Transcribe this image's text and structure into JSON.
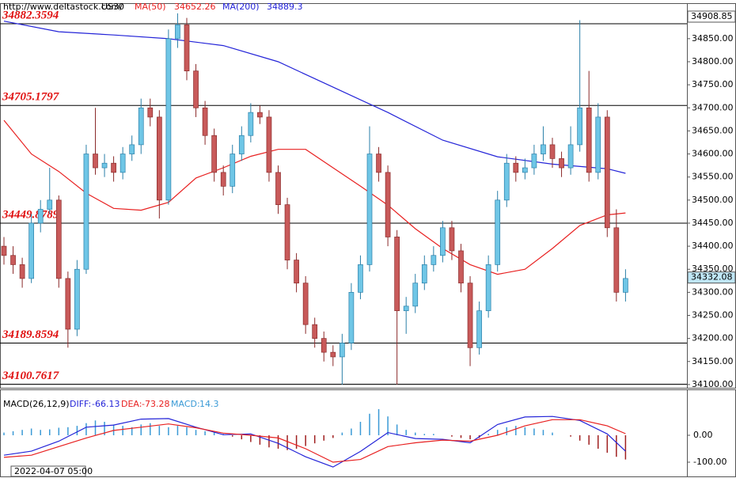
{
  "chart_data": {
    "type": "candlestick",
    "source": "http://www.deltastock.com/",
    "symbol": "US30",
    "date": "2022-04-07 05:00",
    "ylim": [
      34093,
      34927
    ],
    "yticks": [
      {
        "value": 34850,
        "label": "34850.00"
      },
      {
        "value": 34800,
        "label": "34800.00"
      },
      {
        "value": 34750,
        "label": "34750.00"
      },
      {
        "value": 34700,
        "label": "34700.00"
      },
      {
        "value": 34650,
        "label": "34650.00"
      },
      {
        "value": 34600,
        "label": "34600.00"
      },
      {
        "value": 34550,
        "label": "34550.00"
      },
      {
        "value": 34500,
        "label": "34500.00"
      },
      {
        "value": 34450,
        "label": "34450.00"
      },
      {
        "value": 34400,
        "label": "34400.00"
      },
      {
        "value": 34350,
        "label": "34350.00"
      },
      {
        "value": 34300,
        "label": "34300.00"
      },
      {
        "value": 34250,
        "label": "34250.00"
      },
      {
        "value": 34200,
        "label": "34200.00"
      },
      {
        "value": 34150,
        "label": "34150.00"
      },
      {
        "value": 34100,
        "label": "34100.00"
      }
    ],
    "top_price": 34908.85,
    "last_price": 34332.08,
    "levels": [
      34882.3594,
      34705.1797,
      34449.8789,
      34189.8594,
      34100.7617
    ],
    "up_color": "#6fc6e6",
    "down_color": "#c85a5a",
    "candles": {
      "open": [
        34400,
        34380,
        34360,
        34330,
        34450,
        34480,
        34500,
        34330,
        34220,
        34350,
        34600,
        34570,
        34580,
        34560,
        34600,
        34620,
        34700,
        34680,
        34500,
        34850,
        34880,
        34780,
        34700,
        34640,
        34560,
        34530,
        34600,
        34640,
        34690,
        34680,
        34560,
        34490,
        34370,
        34320,
        34230,
        34200,
        34170,
        34160,
        34190,
        34300,
        34360,
        34600,
        34560,
        34420,
        34260,
        34270,
        34320,
        34360,
        34380,
        34440,
        34390,
        34320,
        34180,
        34260,
        34360,
        34500,
        34580,
        34560,
        34570,
        34600,
        34620,
        34590,
        34570,
        34620,
        34700,
        34560,
        34680,
        34440,
        34300
      ],
      "high": [
        34420,
        34400,
        34375,
        34470,
        34500,
        34570,
        34510,
        34345,
        34370,
        34620,
        34700,
        34600,
        34595,
        34615,
        34640,
        34720,
        34720,
        34695,
        34870,
        34905,
        34895,
        34795,
        34715,
        34655,
        34575,
        34620,
        34660,
        34710,
        34705,
        34695,
        34575,
        34505,
        34385,
        34335,
        34245,
        34215,
        34185,
        34210,
        34320,
        34380,
        34660,
        34615,
        34575,
        34435,
        34290,
        34340,
        34380,
        34400,
        34455,
        34455,
        34405,
        34335,
        34280,
        34380,
        34520,
        34600,
        34595,
        34590,
        34620,
        34660,
        34635,
        34605,
        34660,
        34890,
        34780,
        34710,
        34695,
        34480,
        34350
      ],
      "low": [
        34360,
        34340,
        34310,
        34320,
        34430,
        34470,
        34310,
        34180,
        34205,
        34340,
        34555,
        34550,
        34540,
        34545,
        34585,
        34600,
        34660,
        34460,
        34490,
        34830,
        34760,
        34680,
        34620,
        34540,
        34510,
        34515,
        34585,
        34625,
        34665,
        34540,
        34470,
        34350,
        34300,
        34210,
        34180,
        34150,
        34140,
        34100,
        34175,
        34285,
        34345,
        34540,
        34400,
        34100,
        34210,
        34255,
        34305,
        34345,
        34365,
        34370,
        34300,
        34140,
        34165,
        34245,
        34345,
        34485,
        34540,
        34545,
        34555,
        34585,
        34570,
        34550,
        34555,
        34605,
        34540,
        34545,
        34420,
        34280,
        34280
      ],
      "close": [
        34380,
        34360,
        34330,
        34450,
        34480,
        34500,
        34330,
        34220,
        34350,
        34600,
        34570,
        34580,
        34560,
        34600,
        34620,
        34700,
        34680,
        34500,
        34850,
        34880,
        34780,
        34700,
        34640,
        34560,
        34530,
        34600,
        34640,
        34690,
        34680,
        34560,
        34490,
        34370,
        34320,
        34230,
        34200,
        34170,
        34160,
        34190,
        34300,
        34360,
        34600,
        34560,
        34420,
        34260,
        34270,
        34320,
        34360,
        34380,
        34440,
        34390,
        34320,
        34180,
        34260,
        34360,
        34500,
        34580,
        34560,
        34570,
        34600,
        34620,
        34590,
        34570,
        34620,
        34700,
        34560,
        34680,
        34440,
        34300,
        34330
      ]
    },
    "series": [
      {
        "name": "MA(50)",
        "value": 34652.26,
        "color": "#e82020",
        "x": [
          0,
          3,
          6,
          9,
          12,
          15,
          18,
          21,
          24,
          27,
          30,
          33,
          36,
          39,
          42,
          45,
          48,
          51,
          54,
          57,
          60,
          63,
          66,
          68
        ],
        "values": [
          34673,
          34600,
          34562,
          34515,
          34482,
          34478,
          34495,
          34548,
          34570,
          34595,
          34610,
          34610,
          34570,
          34530,
          34489,
          34438,
          34395,
          34360,
          34339,
          34350,
          34395,
          34445,
          34468,
          34472
        ]
      },
      {
        "name": "MA(200)",
        "value": 34889.3,
        "color": "#2424d8",
        "x": [
          0,
          6,
          12,
          18,
          24,
          30,
          36,
          42,
          48,
          54,
          60,
          66,
          68
        ],
        "values": [
          34888,
          34865,
          34858,
          34850,
          34835,
          34800,
          34745,
          34690,
          34630,
          34594,
          34578,
          34568,
          34558
        ]
      }
    ],
    "macd": {
      "title": "MACD(26,12,9)",
      "ylim": [
        -147,
        147
      ],
      "yticks": [
        {
          "value": 0,
          "label": "0.00"
        },
        {
          "value": -100,
          "label": "-100.00"
        }
      ],
      "up_color": "#3a9ad6",
      "down_color": "#a02020",
      "histogram_name": "MACD:",
      "histogram_value": 14.3,
      "histogram": [
        10,
        15,
        20,
        25,
        20,
        22,
        28,
        30,
        35,
        45,
        55,
        50,
        40,
        35,
        30,
        40,
        45,
        35,
        30,
        35,
        30,
        20,
        15,
        10,
        5,
        -5,
        -15,
        -25,
        -35,
        -45,
        -50,
        -55,
        -50,
        -40,
        -30,
        -20,
        -10,
        10,
        25,
        50,
        80,
        97,
        70,
        40,
        20,
        10,
        5,
        5,
        0,
        -5,
        -10,
        -15,
        -10,
        5,
        20,
        30,
        35,
        30,
        25,
        20,
        10,
        0,
        -5,
        -20,
        -35,
        -50,
        -65,
        -80,
        -90
      ],
      "lines": [
        {
          "name": "DIFF:",
          "value": -66.13,
          "color": "#2424d8",
          "x": [
            0,
            3,
            6,
            9,
            12,
            15,
            18,
            21,
            24,
            27,
            30,
            33,
            36,
            39,
            42,
            45,
            48,
            51,
            54,
            57,
            60,
            63,
            66,
            68
          ],
          "values": [
            -74,
            -59,
            -22,
            30,
            38,
            60,
            62,
            30,
            2,
            5,
            -30,
            -80,
            -118,
            -60,
            10,
            -12,
            -15,
            -28,
            40,
            68,
            70,
            55,
            5,
            -59
          ]
        },
        {
          "name": "DEA:",
          "value": -73.28,
          "color": "#e82020",
          "x": [
            0,
            3,
            6,
            9,
            12,
            15,
            18,
            21,
            24,
            27,
            30,
            33,
            36,
            39,
            42,
            45,
            48,
            51,
            54,
            57,
            60,
            63,
            66,
            68
          ],
          "values": [
            -82,
            -74,
            -42,
            -10,
            18,
            30,
            42,
            28,
            8,
            0,
            -10,
            -50,
            -100,
            -90,
            -42,
            -28,
            -18,
            -22,
            0,
            35,
            58,
            58,
            35,
            6
          ]
        }
      ]
    }
  }
}
